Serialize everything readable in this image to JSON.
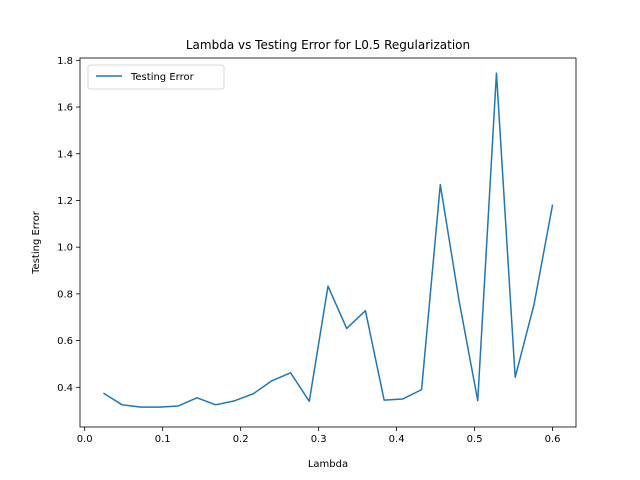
{
  "chart_data": {
    "type": "line",
    "title": "Lambda vs Testing Error for L0.5 Regularization",
    "xlabel": "Lambda",
    "ylabel": "Testing Error",
    "xlim": [
      -0.006,
      0.63
    ],
    "ylim": [
      0.23,
      1.81
    ],
    "xticks": [
      "0.0",
      "0.1",
      "0.2",
      "0.3",
      "0.4",
      "0.5",
      "0.6"
    ],
    "yticks": [
      "0.4",
      "0.6",
      "0.8",
      "1.0",
      "1.2",
      "1.4",
      "1.6",
      "1.8"
    ],
    "legend": {
      "placement": "upper-left",
      "entries": [
        "Testing Error"
      ]
    },
    "grid": false,
    "series": [
      {
        "name": "Testing Error",
        "color": "#1f77b4",
        "x": [
          0.024,
          0.048,
          0.072,
          0.096,
          0.12,
          0.144,
          0.168,
          0.192,
          0.216,
          0.24,
          0.264,
          0.288,
          0.312,
          0.336,
          0.36,
          0.384,
          0.408,
          0.432,
          0.456,
          0.48,
          0.504,
          0.528,
          0.552,
          0.576,
          0.6
        ],
        "y": [
          0.375,
          0.325,
          0.315,
          0.315,
          0.32,
          0.355,
          0.325,
          0.342,
          0.372,
          0.428,
          0.462,
          0.34,
          0.833,
          0.652,
          0.728,
          0.345,
          0.35,
          0.39,
          1.268,
          0.772,
          0.343,
          1.745,
          0.443,
          0.752,
          1.182
        ]
      }
    ]
  }
}
